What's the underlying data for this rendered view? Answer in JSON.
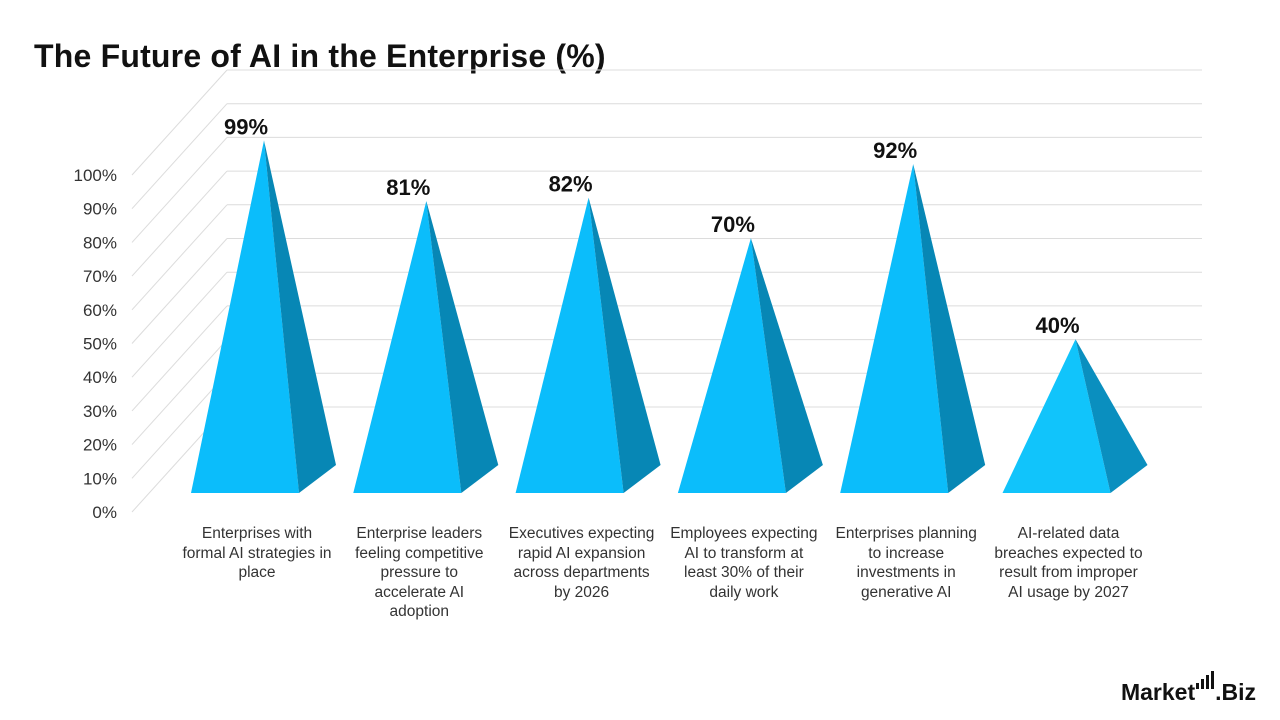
{
  "chart_data": {
    "type": "bar",
    "title": "The Future of AI in the Enterprise (%)",
    "categories": [
      "Enterprises with formal AI strategies in place",
      "Enterprise leaders feeling competitive pressure to accelerate AI adoption",
      "Executives expecting rapid AI expansion across departments by 2026",
      "Employees expecting AI to transform at least 30% of their daily work",
      "Enterprises planning to increase investments in generative AI",
      "AI-related data breaches expected to result from improper AI usage by 2027"
    ],
    "values": [
      99,
      81,
      82,
      70,
      92,
      40
    ],
    "data_labels": [
      "99%",
      "81%",
      "82%",
      "70%",
      "92%",
      "40%"
    ],
    "ylim": [
      0,
      100
    ],
    "yticks": [
      "0%",
      "10%",
      "20%",
      "30%",
      "40%",
      "50%",
      "60%",
      "70%",
      "80%",
      "90%",
      "100%"
    ],
    "grid": true,
    "legend": "none",
    "colors": {
      "front": "#0bbdfb",
      "side": "#0787b5",
      "last_front": "#11c4fb",
      "last_side": "#0a8fbf",
      "grid": "#dcdcdc"
    }
  },
  "brand": {
    "name_main": "Market",
    "name_dot": ".",
    "name_suffix": "Biz"
  }
}
